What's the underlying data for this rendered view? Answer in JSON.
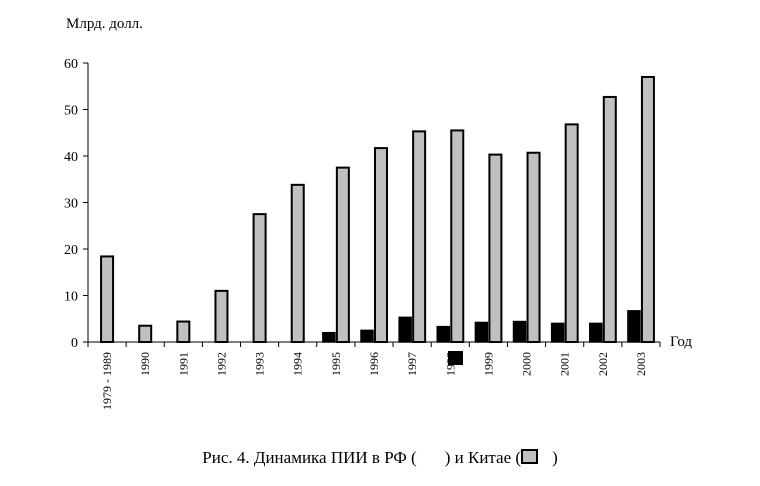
{
  "chart_data": {
    "type": "bar",
    "ylabel": "Млрд. долл.",
    "xlabel": "Год",
    "ylim": [
      0,
      60
    ],
    "yticks": [
      0,
      10,
      20,
      30,
      40,
      50,
      60
    ],
    "categories": [
      "1979 - 1989",
      "1990",
      "1991",
      "1992",
      "1993",
      "1994",
      "1995",
      "1996",
      "1997",
      "1998",
      "1999",
      "2000",
      "2001",
      "2002",
      "2003"
    ],
    "series": [
      {
        "name": "РФ",
        "color": "#000000",
        "values": [
          null,
          null,
          null,
          null,
          null,
          null,
          2.0,
          2.5,
          5.3,
          3.3,
          4.2,
          4.4,
          4.0,
          4.0,
          6.7
        ]
      },
      {
        "name": "Китае",
        "color": "#c0c0c0",
        "values": [
          18.4,
          3.5,
          4.4,
          11.0,
          27.5,
          33.8,
          37.5,
          41.7,
          45.3,
          45.5,
          40.3,
          40.7,
          46.8,
          52.7,
          57.0
        ]
      }
    ],
    "legend": "in caption"
  },
  "caption": {
    "prefix": "Рис. 4. Динамика ПИИ в РФ (",
    "middle": ") и Китае (",
    "suffix": ")"
  }
}
